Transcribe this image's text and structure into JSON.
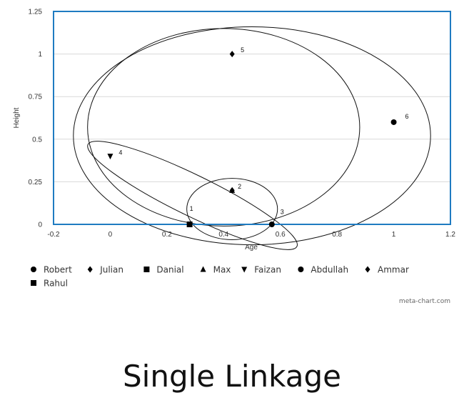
{
  "chart_data": {
    "type": "scatter",
    "xlabel": "Age",
    "ylabel": "Height",
    "xlim": [
      -0.2,
      1.2
    ],
    "ylim": [
      0,
      1.25
    ],
    "x_ticks": [
      "-0.2",
      "0",
      "0.2",
      "0.4",
      "0.6",
      "0.8",
      "1",
      "1.2"
    ],
    "y_ticks": [
      "0",
      "0.25",
      "0.5",
      "0.75",
      "1",
      "1.25"
    ],
    "grid": true,
    "legend_position": "bottom",
    "series": [
      {
        "name": "Robert",
        "marker": "circle",
        "points": [
          {
            "x": 0.57,
            "y": 0.0
          }
        ]
      },
      {
        "name": "Julian",
        "marker": "diamond",
        "points": []
      },
      {
        "name": "Danial",
        "marker": "square",
        "points": [
          {
            "x": 0.28,
            "y": 0.0
          }
        ]
      },
      {
        "name": "Max",
        "marker": "triangle-up",
        "points": [
          {
            "x": 0.43,
            "y": 0.2
          }
        ]
      },
      {
        "name": "Faizan",
        "marker": "triangle-down",
        "points": [
          {
            "x": 0.0,
            "y": 0.4
          }
        ]
      },
      {
        "name": "Abdullah",
        "marker": "circle",
        "points": [
          {
            "x": 1.0,
            "y": 0.6
          }
        ]
      },
      {
        "name": "Ammar",
        "marker": "diamond",
        "points": [
          {
            "x": 0.43,
            "y": 1.0
          },
          {
            "x": 0.43,
            "y": 0.2
          }
        ]
      },
      {
        "name": "Rahul",
        "marker": "square",
        "points": []
      }
    ],
    "annotations": [
      {
        "text": "1",
        "x": 0.28,
        "y": 0.08
      },
      {
        "text": "2",
        "x": 0.45,
        "y": 0.21
      },
      {
        "text": "3",
        "x": 0.6,
        "y": 0.06
      },
      {
        "text": "4",
        "x": 0.03,
        "y": 0.41
      },
      {
        "text": "5",
        "x": 0.46,
        "y": 1.01
      },
      {
        "text": "6",
        "x": 1.04,
        "y": 0.62
      }
    ],
    "clusters": [
      {
        "id": 1,
        "cx": 0.43,
        "cy": 0.09,
        "rx": 0.16,
        "ry": 0.18,
        "angle": 0
      },
      {
        "id": 2,
        "cx": 0.29,
        "cy": 0.17,
        "rx": 0.41,
        "ry": 0.12,
        "angle": 26
      },
      {
        "id": 3,
        "cx": 0.4,
        "cy": 0.57,
        "rx": 0.48,
        "ry": 0.58,
        "angle": 0
      },
      {
        "id": 4,
        "cx": 0.5,
        "cy": 0.52,
        "rx": 0.63,
        "ry": 0.64,
        "angle": 0
      }
    ],
    "colors": {
      "frame": "#1f7bc1",
      "grid": "#d9d9d9",
      "marks": "#000000"
    }
  },
  "credit": "meta-chart.com",
  "caption": "Single Linkage"
}
